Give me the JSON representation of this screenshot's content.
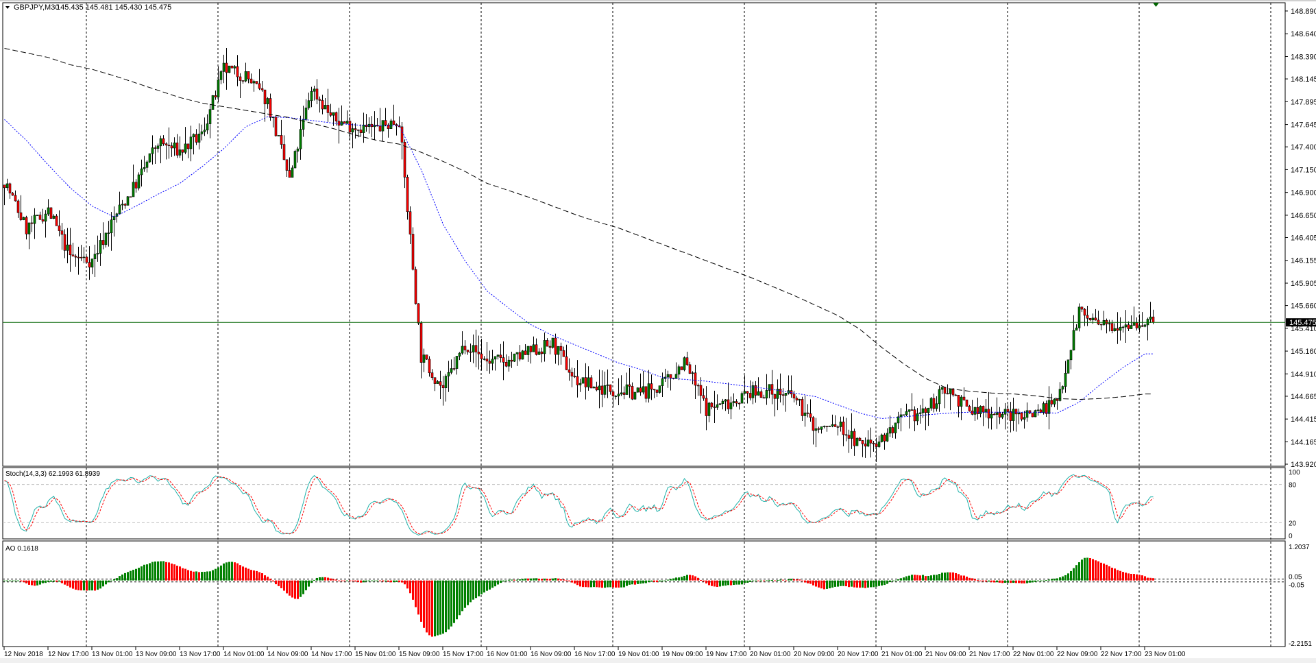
{
  "header": {
    "symbol": "GBPJPY,M30",
    "ohlc": "145.435 145.481 145.430 145.475"
  },
  "colors": {
    "bull": "#008000",
    "bear": "#ff0000",
    "ma_fast": "#0000ff",
    "ma_slow": "#000000",
    "price_line": "#006400",
    "stoch_main": "#20b2aa",
    "stoch_signal": "#ff0000",
    "ao_up": "#008000",
    "ao_down": "#ff0000"
  },
  "chart_data": {
    "type": "candlestick",
    "title": "GBPJPY,M30",
    "timeframe": "M30",
    "ylim": [
      143.92,
      148.89
    ],
    "grid": "vertical dashed",
    "last_price": "145.475",
    "y_tick_labels": [
      "148.890",
      "148.640",
      "148.390",
      "148.145",
      "147.895",
      "147.645",
      "147.400",
      "147.150",
      "146.900",
      "146.650",
      "146.405",
      "146.155",
      "145.905",
      "145.660",
      "145.410",
      "145.160",
      "144.910",
      "144.665",
      "144.415",
      "144.165",
      "143.920"
    ],
    "x_tick_labels": [
      "12 Nov 2018",
      "12 Nov 17:00",
      "13 Nov 01:00",
      "13 Nov 09:00",
      "13 Nov 17:00",
      "14 Nov 01:00",
      "14 Nov 09:00",
      "14 Nov 17:00",
      "15 Nov 01:00",
      "15 Nov 09:00",
      "15 Nov 17:00",
      "16 Nov 01:00",
      "16 Nov 09:00",
      "16 Nov 17:00",
      "19 Nov 01:00",
      "19 Nov 09:00",
      "19 Nov 17:00",
      "20 Nov 01:00",
      "20 Nov 09:00",
      "20 Nov 17:00",
      "21 Nov 01:00",
      "21 Nov 09:00",
      "21 Nov 17:00",
      "22 Nov 01:00",
      "22 Nov 09:00",
      "22 Nov 17:00",
      "23 Nov 01:00"
    ],
    "close_samples_every_4h": [
      147.03,
      146.5,
      146.7,
      146.2,
      146.15,
      146.62,
      147.0,
      147.45,
      147.35,
      147.53,
      148.25,
      148.18,
      147.9,
      147.03,
      148.05,
      147.7,
      147.62,
      147.6,
      147.7,
      145.1,
      144.75,
      145.25,
      145.05,
      145.05,
      145.15,
      145.24,
      144.85,
      144.76,
      144.73,
      144.7,
      144.78,
      145.05,
      144.53,
      144.6,
      144.7,
      144.72,
      144.65,
      144.3,
      144.35,
      144.13,
      144.2,
      144.42,
      144.5,
      144.76,
      144.5,
      144.5,
      144.45,
      144.5,
      144.6,
      145.6,
      145.42,
      145.48,
      145.47
    ],
    "ma_fast_samples_every_4h": [
      147.7,
      147.47,
      147.2,
      146.95,
      146.75,
      146.63,
      146.75,
      146.88,
      147.0,
      147.18,
      147.38,
      147.62,
      147.73,
      147.72,
      147.69,
      147.66,
      147.64,
      147.63,
      147.63,
      147.15,
      146.55,
      146.15,
      145.82,
      145.63,
      145.45,
      145.33,
      145.23,
      145.13,
      145.03,
      144.96,
      144.87,
      144.85,
      144.83,
      144.8,
      144.77,
      144.74,
      144.7,
      144.66,
      144.57,
      144.48,
      144.42,
      144.44,
      144.46,
      144.48,
      144.49,
      144.49,
      144.49,
      144.49,
      144.48,
      144.6,
      144.8,
      144.98,
      145.13
    ],
    "ma_slow_samples_every_4h": [
      148.48,
      148.43,
      148.38,
      148.3,
      148.25,
      148.18,
      148.1,
      148.02,
      147.94,
      147.88,
      147.84,
      147.8,
      147.76,
      147.72,
      147.66,
      147.6,
      147.53,
      147.47,
      147.43,
      147.34,
      147.24,
      147.13,
      147.0,
      146.92,
      146.84,
      146.75,
      146.66,
      146.58,
      146.51,
      146.42,
      146.33,
      146.24,
      146.15,
      146.06,
      145.97,
      145.87,
      145.77,
      145.66,
      145.55,
      145.4,
      145.2,
      145.02,
      144.86,
      144.75,
      144.72,
      144.7,
      144.69,
      144.67,
      144.64,
      144.63,
      144.64,
      144.66,
      144.69
    ],
    "stochastic": {
      "label": "Stoch(14,3,3) 62.1993 61.8939",
      "ylim": [
        0,
        100
      ],
      "tick_labels": [
        "100",
        "80",
        "20",
        "0"
      ],
      "levels": [
        80,
        20
      ]
    },
    "ao": {
      "label": "AO 0.1618",
      "ylim": [
        -2.2151,
        1.2037
      ],
      "tick_labels": [
        "1.2037",
        "0.05",
        "-0.05",
        "-2.2151"
      ],
      "levels": [
        0.05,
        -0.05
      ]
    }
  }
}
